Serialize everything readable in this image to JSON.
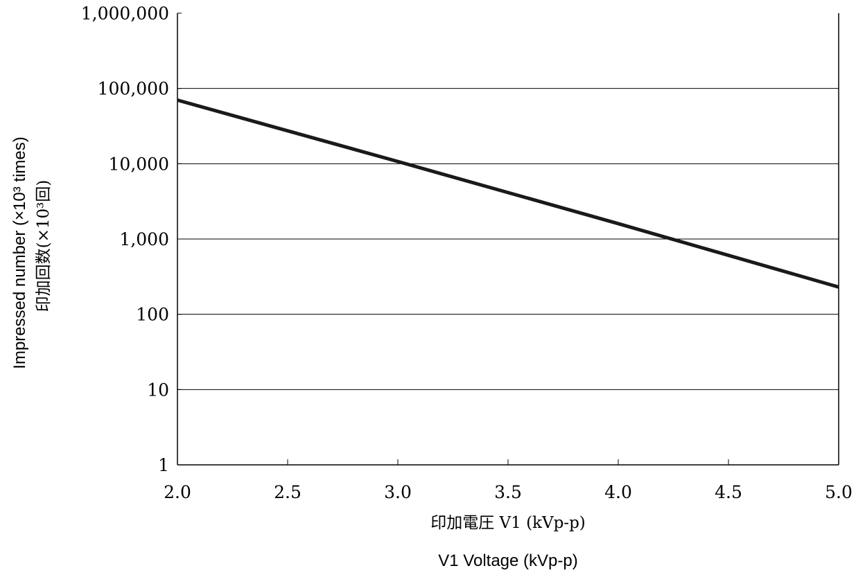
{
  "chart_data": {
    "type": "line",
    "xlabel": "V1 Voltage (kVp-p)",
    "xlabel_jp": "印加電圧 V1 (kVp-p)",
    "ylabel": "Impressed number (×10³ times)",
    "ylabel_jp": "印加回数(×10³回)",
    "xlim": [
      2.0,
      5.0
    ],
    "ylim": [
      1,
      1000000
    ],
    "yscale": "log",
    "x_ticks": [
      "2.0",
      "2.5",
      "3.0",
      "3.5",
      "4.0",
      "4.5",
      "5.0"
    ],
    "y_ticks": [
      "1",
      "10",
      "100",
      "1,000",
      "10,000",
      "100,000",
      "1,000,000"
    ],
    "grid": "horizontal",
    "legend": "none",
    "series": [
      {
        "color": "#1a1a1a",
        "x": [
          2.0,
          3.0,
          4.0,
          5.0
        ],
        "y": [
          70000,
          10700,
          1600,
          230
        ]
      }
    ]
  }
}
